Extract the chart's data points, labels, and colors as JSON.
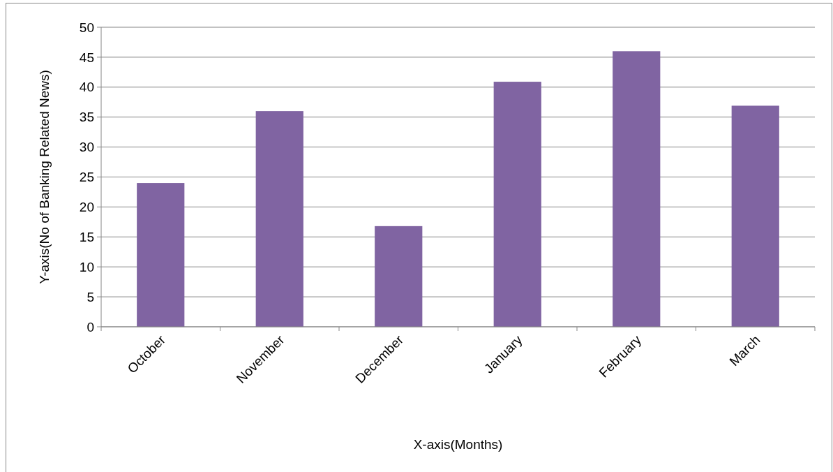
{
  "chart_data": {
    "type": "bar",
    "xlabel": "X-axis(Months)",
    "ylabel": "Y-axis(No of Banking Related News)",
    "categories": [
      "October",
      "November",
      "December",
      "January",
      "February",
      "March"
    ],
    "values": [
      24,
      36,
      16.8,
      40.9,
      46,
      36.9
    ],
    "color": "#8064a2",
    "ylim": [
      0,
      50
    ],
    "yticks": [
      0,
      5,
      10,
      15,
      20,
      25,
      30,
      35,
      40,
      45,
      50
    ],
    "grid": "y"
  }
}
